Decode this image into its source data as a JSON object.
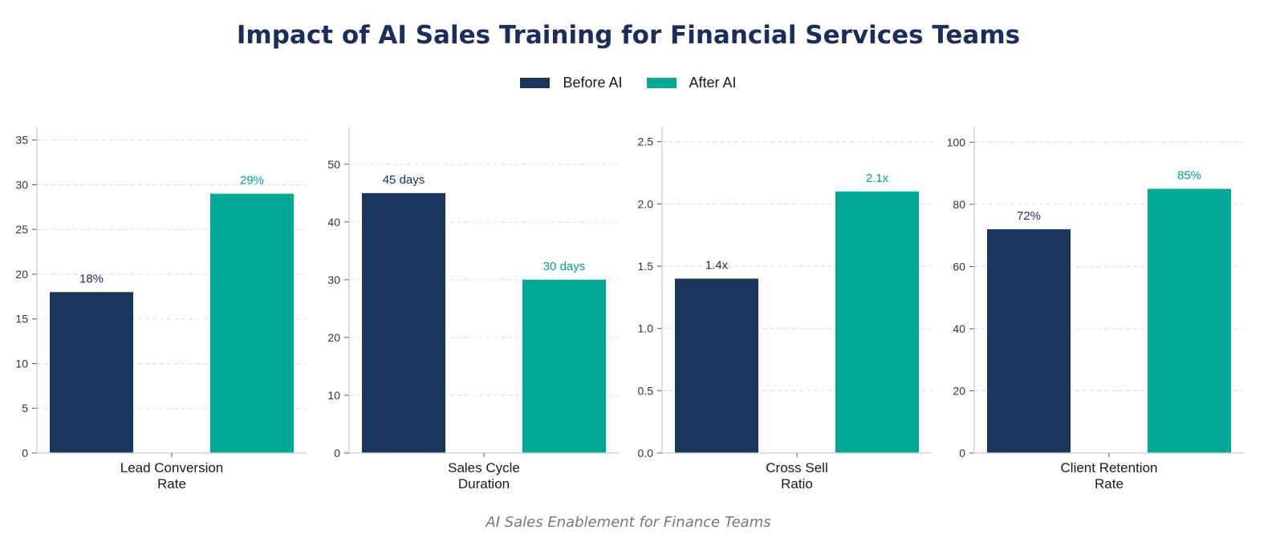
{
  "chart_data": [
    {
      "type": "bar",
      "title": "Lead Conversion Rate",
      "category_lines": [
        "Lead Conversion",
        "Rate"
      ],
      "series": [
        {
          "name": "Before AI",
          "value": 18,
          "label": "18%"
        },
        {
          "name": "After AI",
          "value": 29,
          "label": "29%"
        }
      ],
      "ylim": [
        0,
        36.5
      ],
      "yticks": [
        0,
        5,
        10,
        15,
        20,
        25,
        30,
        35
      ],
      "ytick_labels": [
        "0",
        "5",
        "10",
        "15",
        "20",
        "25",
        "30",
        "35"
      ],
      "grid": true
    },
    {
      "type": "bar",
      "title": "Sales Cycle Duration",
      "category_lines": [
        "Sales Cycle",
        "Duration"
      ],
      "series": [
        {
          "name": "Before AI",
          "value": 45,
          "label": "45 days"
        },
        {
          "name": "After AI",
          "value": 30,
          "label": "30 days"
        }
      ],
      "ylim": [
        0,
        56.5
      ],
      "yticks": [
        0,
        10,
        20,
        30,
        40,
        50
      ],
      "ytick_labels": [
        "0",
        "10",
        "20",
        "30",
        "40",
        "50"
      ],
      "grid": true
    },
    {
      "type": "bar",
      "title": "Cross Sell Ratio",
      "category_lines": [
        "Cross Sell",
        "Ratio"
      ],
      "series": [
        {
          "name": "Before AI",
          "value": 1.4,
          "label": "1.4x"
        },
        {
          "name": "After AI",
          "value": 2.1,
          "label": "2.1x"
        }
      ],
      "ylim": [
        0,
        2.62
      ],
      "yticks": [
        0,
        0.5,
        1.0,
        1.5,
        2.0,
        2.5
      ],
      "ytick_labels": [
        "0.0",
        "0.5",
        "1.0",
        "1.5",
        "2.0",
        "2.5"
      ],
      "grid": true
    },
    {
      "type": "bar",
      "title": "Client Retention Rate",
      "category_lines": [
        "Client Retention",
        "Rate"
      ],
      "series": [
        {
          "name": "Before AI",
          "value": 72,
          "label": "72%"
        },
        {
          "name": "After AI",
          "value": 85,
          "label": "85%"
        }
      ],
      "ylim": [
        0,
        105
      ],
      "yticks": [
        0,
        20,
        40,
        60,
        80,
        100
      ],
      "ytick_labels": [
        "0",
        "20",
        "40",
        "60",
        "80",
        "100"
      ],
      "grid": true
    }
  ],
  "header": {
    "title": "Impact of AI Sales Training for Financial Services Teams",
    "subtitle": "AI Sales Enablement for Finance Teams"
  },
  "legend": {
    "placement": "top-center",
    "items": [
      {
        "label": "Before AI",
        "color": "#1b365d"
      },
      {
        "label": "After AI",
        "color": "#00a896"
      }
    ]
  },
  "colors": {
    "before": "#1b365d",
    "after": "#00a896",
    "before_label": "#1b2d5b",
    "after_label": "#00a08a",
    "axis": "#cccccc",
    "grid": "#d9d9d9",
    "tick_text": "#333333"
  }
}
